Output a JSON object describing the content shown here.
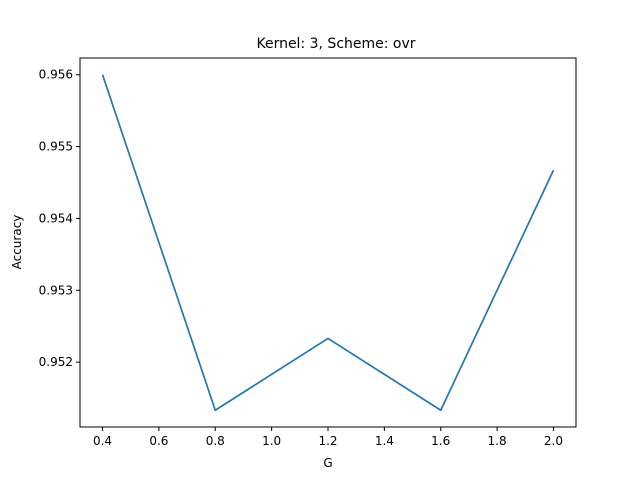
{
  "chart_data": {
    "type": "line",
    "title": "Kernel: 3, Scheme: ovr",
    "xlabel": "G",
    "ylabel": "Accuracy",
    "x": [
      0.4,
      0.8,
      1.2,
      1.6,
      2.0
    ],
    "series": [
      {
        "values": [
          0.956,
          0.95133,
          0.95233,
          0.95133,
          0.95467
        ],
        "color": "#1f77b4"
      }
    ],
    "xticks": [
      "0.4",
      "0.6",
      "0.8",
      "1.0",
      "1.2",
      "1.4",
      "1.6",
      "1.8",
      "2.0"
    ],
    "yticks": [
      "0.952",
      "0.953",
      "0.954",
      "0.955",
      "0.956"
    ],
    "xlim": [
      0.32,
      2.08
    ],
    "ylim": [
      0.951097,
      0.956233
    ],
    "grid": false
  }
}
